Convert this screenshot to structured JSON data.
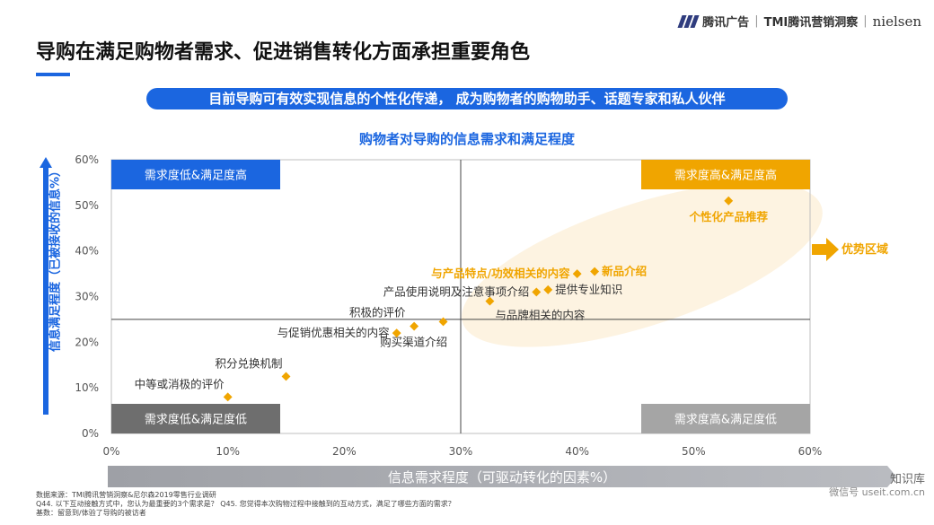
{
  "brand": {
    "tencent": "腾讯广告",
    "tmi": "TMI腾讯营销洞察",
    "nielsen": "nielsen"
  },
  "title": "导购在满足购物者需求、促进销售转化方面承担重要角色",
  "subtitle": "目前导购可有效实现信息的个性化传递， 成为购物者的购物助手、话题专家和私人伙伴",
  "chart_data": {
    "type": "scatter",
    "title": "购物者对导购的信息需求和满足程度",
    "xlabel": "信息需求程度（可驱动转化的因素%）",
    "ylabel": "信息满足程度（已被接收的信息%）",
    "xlim": [
      0,
      60
    ],
    "ylim": [
      0,
      60
    ],
    "x_ticks": [
      "0%",
      "10%",
      "20%",
      "30%",
      "40%",
      "50%",
      "60%"
    ],
    "y_ticks": [
      "0%",
      "10%",
      "20%",
      "30%",
      "40%",
      "50%",
      "60%"
    ],
    "divider_x": 30,
    "divider_y": 25,
    "quadrants": [
      {
        "label": "需求度低&满足度高",
        "position": "top-left",
        "color": "#1b66e0"
      },
      {
        "label": "需求度高&满足度高",
        "position": "top-right",
        "color": "#f0a500"
      },
      {
        "label": "需求度低&满足度低",
        "position": "bottom-left",
        "color": "#6e6e6e"
      },
      {
        "label": "需求度高&满足度低",
        "position": "bottom-right",
        "color": "#a5a5a5"
      }
    ],
    "points": [
      {
        "label": "个性化产品推荐",
        "x": 53,
        "y": 51,
        "highlight": true
      },
      {
        "label": "新品介绍",
        "x": 41.5,
        "y": 35.5,
        "highlight": true
      },
      {
        "label": "与产品特点/功效相关的内容",
        "x": 40,
        "y": 35,
        "highlight": true
      },
      {
        "label": "提供专业知识",
        "x": 37.5,
        "y": 31.5,
        "highlight": false
      },
      {
        "label": "产品使用说明及注意事项介绍",
        "x": 36.5,
        "y": 31,
        "highlight": false
      },
      {
        "label": "与品牌相关的内容",
        "x": 32.5,
        "y": 29,
        "highlight": false
      },
      {
        "label": "积极的评价",
        "x": 28.5,
        "y": 24.5,
        "highlight": false
      },
      {
        "label": "购买渠道介绍",
        "x": 26,
        "y": 23.5,
        "highlight": false
      },
      {
        "label": "与促销优惠相关的内容",
        "x": 24.5,
        "y": 22,
        "highlight": false
      },
      {
        "label": "积分兑换机制",
        "x": 15,
        "y": 12.5,
        "highlight": false
      },
      {
        "label": "中等或消极的评价",
        "x": 10,
        "y": 8,
        "highlight": false
      }
    ],
    "highlight_zone": "优势区域",
    "colors": {
      "point": "#f0a500",
      "highlight_text": "#f0a500",
      "zone": "#fdf1dc",
      "axis": "#1b66e0"
    }
  },
  "notes": {
    "source": "数据来源：TMI腾讯营销洞察&尼尔森2019零售行业调研",
    "question": "Q44. 以下互动接触方式中，您认为最重要的3个需求是？ Q45. 您觉得本次购物过程中接触到的互动方式，满足了哪些方面的需求？",
    "base": "基数：留意到/体验了导购的被访者"
  },
  "watermark": {
    "name": "知识库",
    "wechat": "微信号 useit.com.cn"
  }
}
